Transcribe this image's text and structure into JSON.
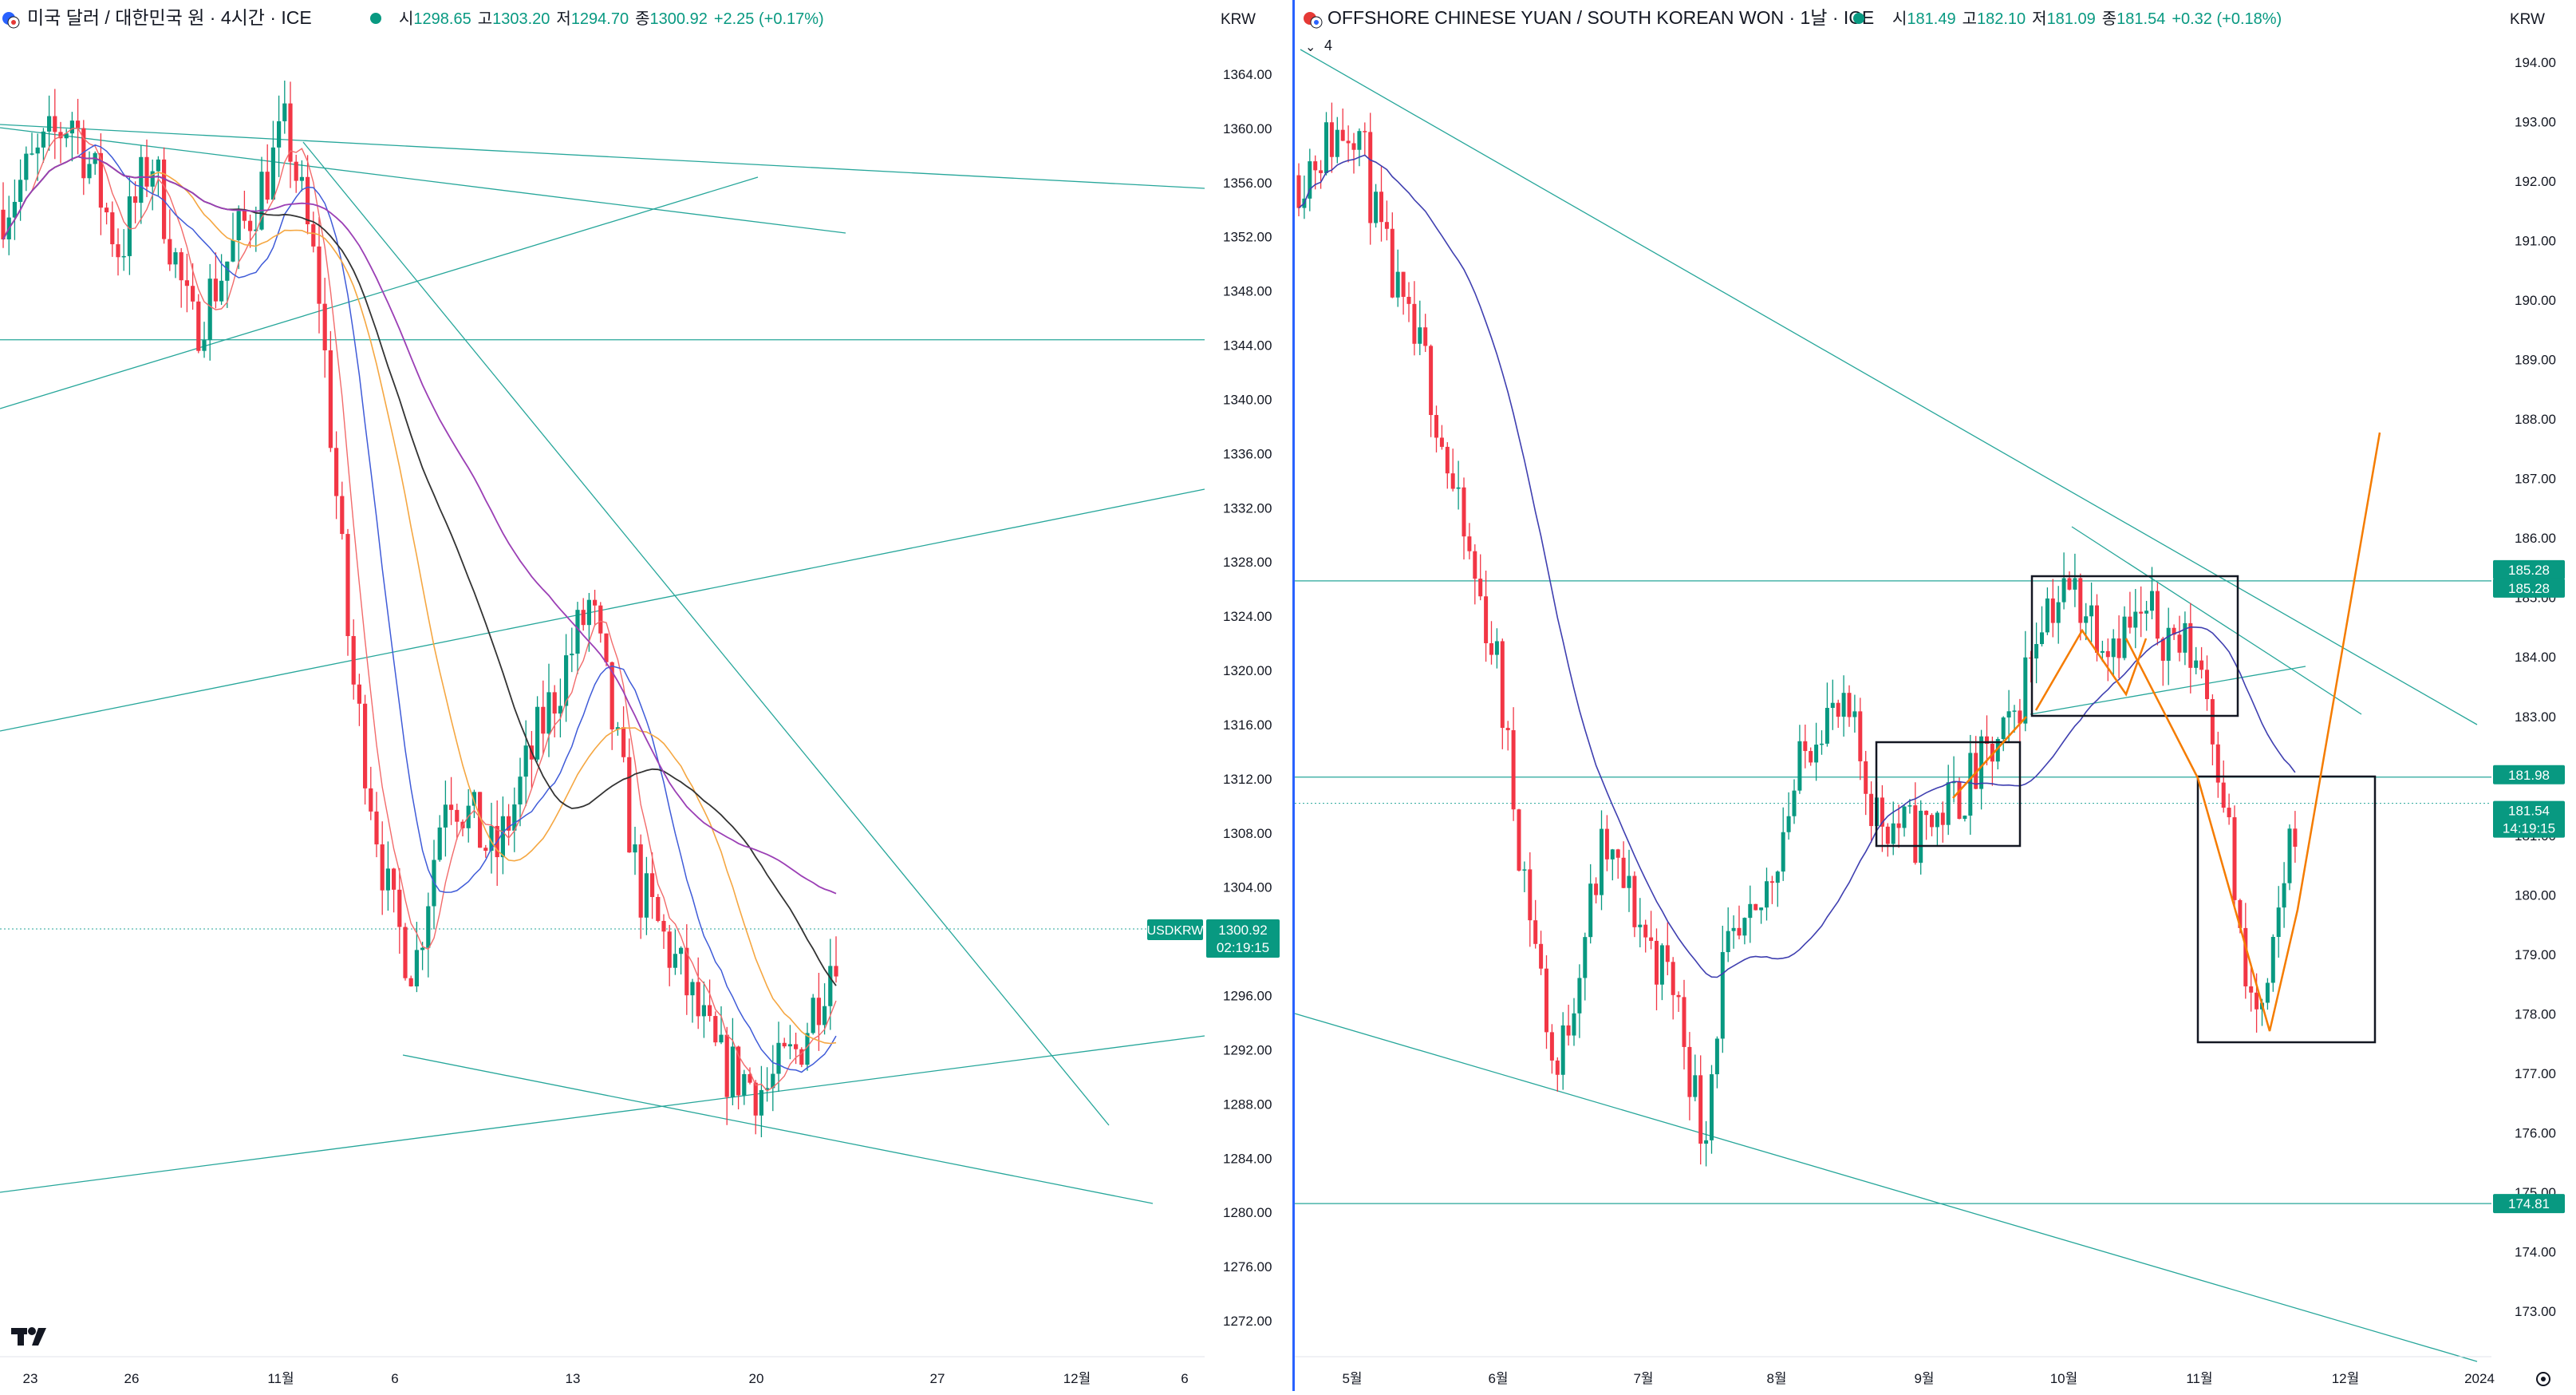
{
  "left": {
    "title": "미국 달러 / 대한민국 원 · 4시간 · ICE",
    "ohlc": {
      "o_label": "시",
      "o": "1298.65",
      "h_label": "고",
      "h": "1303.20",
      "l_label": "저",
      "l": "1294.70",
      "c_label": "종",
      "c": "1300.92",
      "chg": "+2.25 (+0.17%)"
    },
    "currency": "KRW",
    "symbol_tag": "USDKRW",
    "last_price": "1300.92",
    "countdown": "02:19:15",
    "x_ticks": [
      "23",
      "26",
      "11월",
      "6",
      "13",
      "20",
      "27",
      "12월",
      "6"
    ],
    "logo": "TV"
  },
  "right": {
    "title": "OFFSHORE CHINESE YUAN / SOUTH KOREAN WON · 1날 · ICE",
    "ohlc": {
      "o_label": "시",
      "o": "181.49",
      "h_label": "고",
      "h": "182.10",
      "l_label": "저",
      "l": "181.09",
      "c_label": "종",
      "c": "181.54",
      "chg": "+0.32 (+0.18%)"
    },
    "indicator_count": "4",
    "currency": "KRW",
    "price_tags": [
      "185.28",
      "185.28",
      "181.98",
      "181.54",
      "174.81"
    ],
    "countdown": "14:19:15",
    "x_ticks": [
      "5월",
      "6월",
      "7월",
      "8월",
      "9월",
      "10월",
      "11월",
      "12월",
      "2024"
    ]
  },
  "chart_data": [
    {
      "type": "candlestick",
      "title": "미국 달러 / 대한민국 원 · 4시간 · ICE",
      "ylim": [
        1268,
        1368
      ],
      "y_ticks": [
        1364,
        1360,
        1356,
        1352,
        1348,
        1344,
        1340,
        1336,
        1332,
        1328,
        1324,
        1320,
        1316,
        1312,
        1308,
        1304,
        1300,
        1296,
        1292,
        1288,
        1284,
        1280,
        1276,
        1272
      ],
      "x_categories": [
        "23",
        "26",
        "11월",
        "6",
        "13",
        "20",
        "27",
        "12월",
        "6"
      ],
      "last": 1300.92,
      "ma_series": [
        "red",
        "blue",
        "orange",
        "black",
        "purple"
      ],
      "colors": {
        "up": "#089981",
        "down": "#f23645",
        "trend": "#26a69a"
      }
    },
    {
      "type": "candlestick",
      "title": "OFFSHORE CHINESE YUAN / SOUTH KOREAN WON · 1날 · ICE",
      "ylim": [
        172.0,
        194.6
      ],
      "y_ticks": [
        194,
        193,
        192,
        191,
        190,
        189,
        188,
        187,
        186,
        185,
        184,
        183,
        182,
        181,
        180,
        179,
        178,
        177,
        176,
        175,
        174,
        173
      ],
      "x_categories": [
        "5월",
        "6월",
        "7월",
        "8월",
        "9월",
        "10월",
        "11월",
        "12월",
        "2024"
      ],
      "levels": [
        185.28,
        181.98,
        181.54,
        174.81
      ],
      "last": 181.54,
      "projection": [
        [
          181.5,
          177.7
        ],
        [
          187.8
        ]
      ],
      "colors": {
        "up": "#089981",
        "down": "#f23645",
        "trend": "#26a69a",
        "ma": "#3f3fb0",
        "projection": "#f57c00"
      }
    }
  ]
}
